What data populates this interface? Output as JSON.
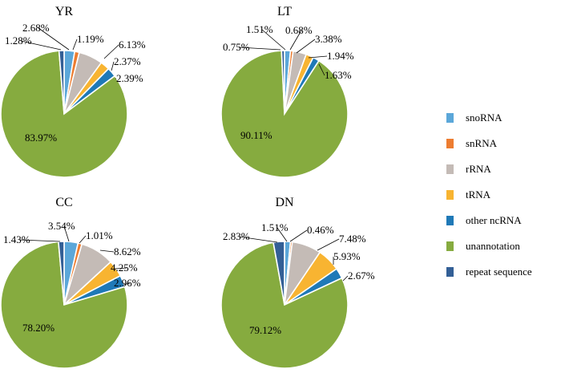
{
  "chart_data": {
    "type": "pie",
    "categories": [
      "snoRNA",
      "snRNA",
      "rRNA",
      "tRNA",
      "other ncRNA",
      "unannotation",
      "repeat sequence"
    ],
    "colors": [
      "#5ba7d9",
      "#ed7d31",
      "#c4bbb6",
      "#f8b431",
      "#1f79b7",
      "#86ab3f",
      "#335f96"
    ],
    "legend_position": "right",
    "pies": [
      {
        "title": "YR",
        "values": [
          2.68,
          1.19,
          6.13,
          2.37,
          2.39,
          83.97,
          1.28
        ],
        "labels": [
          "2.68%",
          "1.19%",
          "6.13%",
          "2.37%",
          "2.39%",
          "83.97%",
          "1.28%"
        ]
      },
      {
        "title": "LT",
        "values": [
          1.51,
          0.68,
          3.38,
          1.94,
          1.63,
          90.11,
          0.75
        ],
        "labels": [
          "1.51%",
          "0.68%",
          "3.38%",
          "1.94%",
          "1.63%",
          "90.11%",
          "0.75%"
        ]
      },
      {
        "title": "CC",
        "values": [
          3.54,
          1.01,
          8.62,
          4.25,
          2.96,
          78.2,
          1.43
        ],
        "labels": [
          "3.54%",
          "1.01%",
          "8.62%",
          "4.25%",
          "2.96%",
          "78.20%",
          "1.43%"
        ]
      },
      {
        "title": "DN",
        "values": [
          1.51,
          0.46,
          7.48,
          5.93,
          2.67,
          79.12,
          2.83
        ],
        "labels": [
          "1.51%",
          "0.46%",
          "7.48%",
          "5.93%",
          "2.67%",
          "79.12%",
          "2.83%"
        ]
      }
    ]
  }
}
